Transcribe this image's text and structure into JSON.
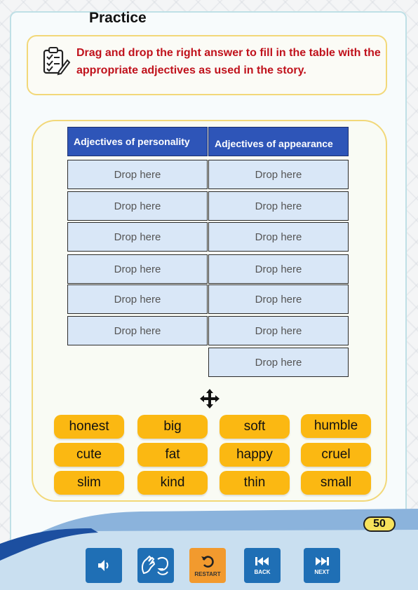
{
  "page": {
    "title": "Practice",
    "instruction": "Drag and drop the right answer to fill in the table with the appropriate adjectives as used in the story.",
    "page_number": "50"
  },
  "table": {
    "col1_header": "Adjectives of personality",
    "col2_header": "Adjectives of appearance",
    "col1_cells": [
      "Drop here",
      "Drop here",
      "Drop here",
      "Drop here",
      "Drop here",
      "Drop here"
    ],
    "col2_cells": [
      "Drop here",
      "Drop here",
      "Drop here",
      "Drop here",
      "Drop here",
      "Drop here",
      "Drop here"
    ]
  },
  "word_bank": [
    [
      "honest",
      "big",
      "soft",
      "humble"
    ],
    [
      "cute",
      "fat",
      "happy",
      "cruel"
    ],
    [
      "slim",
      "kind",
      "thin",
      "small"
    ]
  ],
  "nav": {
    "audio_icon": "speaker-icon",
    "sign_icon": "sign-language-icon",
    "restart_label": "RESTART",
    "back_label": "BACK",
    "next_label": "NEXT"
  },
  "colors": {
    "instruction_text": "#c0121c",
    "header_blue": "#2e55b8",
    "cell_fill": "#d9e7f7",
    "chip_fill": "#fbb812",
    "panel_border": "#f2d879",
    "nav_blue": "#1f6fb5",
    "restart_orange": "#f29a2e"
  }
}
